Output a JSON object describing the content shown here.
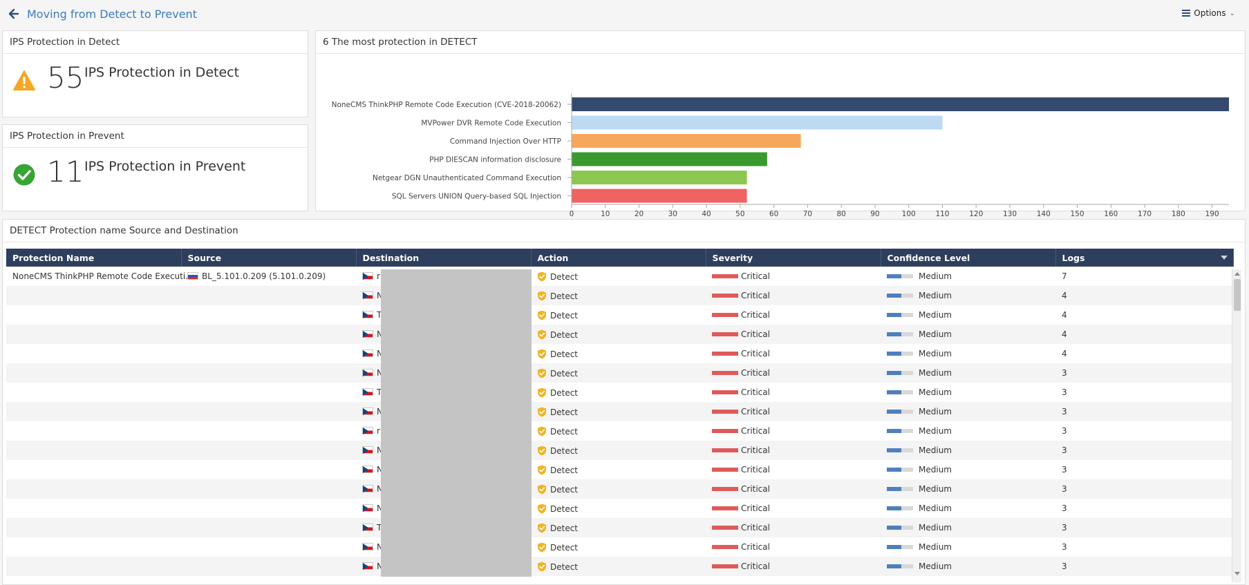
{
  "header": {
    "title": "Moving from Detect to Prevent",
    "options_label": "Options"
  },
  "kpi_detect": {
    "header": "IPS Protection in Detect",
    "value": "55",
    "label": "IPS Protection in Detect",
    "icon": "warning-icon",
    "color": "#f5a623"
  },
  "kpi_prevent": {
    "header": "IPS Protection in Prevent",
    "value": "11",
    "label": "IPS Protection in Prevent",
    "icon": "check-circle-icon",
    "color": "#3aa335"
  },
  "chart_panel": {
    "header": "6 The most protection in DETECT"
  },
  "chart_data": {
    "type": "bar",
    "orientation": "horizontal",
    "categories": [
      "NoneCMS ThinkPHP Remote Code Execution (CVE-2018-20062)",
      "MVPower DVR Remote Code Execution",
      "Command Injection Over HTTP",
      "PHP DIESCAN information disclosure",
      "Netgear DGN Unauthenticated Command Execution",
      "SQL Servers UNION Query-based SQL Injection"
    ],
    "values": [
      195,
      110,
      68,
      58,
      52,
      52
    ],
    "colors": [
      "#34496e",
      "#bcdaf2",
      "#f7a75c",
      "#3b9a2f",
      "#8cc84f",
      "#ef6363"
    ],
    "xlim": [
      0,
      195
    ],
    "xticks": [
      0,
      10,
      20,
      30,
      40,
      50,
      60,
      70,
      80,
      90,
      100,
      110,
      120,
      130,
      140,
      150,
      160,
      170,
      180,
      190
    ],
    "grid": false,
    "legend": "none"
  },
  "table_panel": {
    "header": "DETECT Protection name Source and Destination",
    "columns": [
      "Protection Name",
      "Source",
      "Destination",
      "Action",
      "Severity",
      "Confidence Level",
      "Logs"
    ],
    "rows": [
      {
        "protection": "NoneCMS ThinkPHP Remote Code Executi...",
        "source": "BL_5.101.0.209 (5.101.0.209)",
        "dest": "r",
        "action": "Detect",
        "severity": "Critical",
        "confidence": "Medium",
        "logs": "7"
      },
      {
        "protection": "",
        "source": "",
        "dest": "N",
        "action": "Detect",
        "severity": "Critical",
        "confidence": "Medium",
        "logs": "4"
      },
      {
        "protection": "",
        "source": "",
        "dest": "T",
        "action": "Detect",
        "severity": "Critical",
        "confidence": "Medium",
        "logs": "4"
      },
      {
        "protection": "",
        "source": "",
        "dest": "N",
        "action": "Detect",
        "severity": "Critical",
        "confidence": "Medium",
        "logs": "4"
      },
      {
        "protection": "",
        "source": "",
        "dest": "N",
        "action": "Detect",
        "severity": "Critical",
        "confidence": "Medium",
        "logs": "4"
      },
      {
        "protection": "",
        "source": "",
        "dest": "N",
        "action": "Detect",
        "severity": "Critical",
        "confidence": "Medium",
        "logs": "3"
      },
      {
        "protection": "",
        "source": "",
        "dest": "T",
        "action": "Detect",
        "severity": "Critical",
        "confidence": "Medium",
        "logs": "3"
      },
      {
        "protection": "",
        "source": "",
        "dest": "N",
        "action": "Detect",
        "severity": "Critical",
        "confidence": "Medium",
        "logs": "3"
      },
      {
        "protection": "",
        "source": "",
        "dest": "r",
        "action": "Detect",
        "severity": "Critical",
        "confidence": "Medium",
        "logs": "3"
      },
      {
        "protection": "",
        "source": "",
        "dest": "N",
        "action": "Detect",
        "severity": "Critical",
        "confidence": "Medium",
        "logs": "3"
      },
      {
        "protection": "",
        "source": "",
        "dest": "N",
        "action": "Detect",
        "severity": "Critical",
        "confidence": "Medium",
        "logs": "3"
      },
      {
        "protection": "",
        "source": "",
        "dest": "N",
        "action": "Detect",
        "severity": "Critical",
        "confidence": "Medium",
        "logs": "3"
      },
      {
        "protection": "",
        "source": "",
        "dest": "N",
        "action": "Detect",
        "severity": "Critical",
        "confidence": "Medium",
        "logs": "3"
      },
      {
        "protection": "",
        "source": "",
        "dest": "T",
        "action": "Detect",
        "severity": "Critical",
        "confidence": "Medium",
        "logs": "3"
      },
      {
        "protection": "",
        "source": "",
        "dest": "N",
        "action": "Detect",
        "severity": "Critical",
        "confidence": "Medium",
        "logs": "3"
      },
      {
        "protection": "",
        "source": "",
        "dest": "N",
        "action": "Detect",
        "severity": "Critical",
        "confidence": "Medium",
        "logs": "3"
      }
    ]
  },
  "colors": {
    "accent": "#3b7bbf",
    "table_header": "#2d3f5c",
    "severity_critical": "#e05a5a",
    "confidence_medium": "#4f7fbd",
    "action_detect": "#f0b429"
  }
}
